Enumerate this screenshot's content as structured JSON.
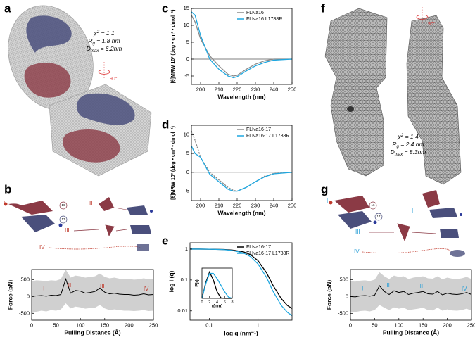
{
  "figure": {
    "panel_labels": [
      "a",
      "b",
      "c",
      "d",
      "e",
      "f",
      "g"
    ],
    "stats_a": [
      {
        "base": "χ",
        "mark": "2",
        "rest": " = 1.1"
      },
      {
        "base": "R",
        "mark": "g",
        "rest": " = 1.8 nm"
      },
      {
        "base": "D",
        "mark": "max",
        "rest": " = 6.2nm"
      }
    ],
    "stats_f": [
      {
        "base": "χ",
        "mark": "2",
        "rest": " = 1.4"
      },
      {
        "base": "R",
        "mark": "g",
        "rest": " = 2.4 nm"
      },
      {
        "base": "D",
        "mark": "max",
        "rest": " = 8.3nm"
      }
    ],
    "rotation": "90°",
    "states": [
      "I",
      "II",
      "III",
      "IV"
    ],
    "domains": [
      "16",
      "17"
    ]
  },
  "chart_data": [
    {
      "type": "line",
      "xlabel": "Wavelength (nm)",
      "ylabel": "[θ]MRW 10³ (deg • cm² • dmol⁻¹)",
      "x": [
        195,
        197,
        200,
        205,
        210,
        215,
        218,
        220,
        225,
        230,
        235,
        240,
        250
      ],
      "series": [
        {
          "name": "FLNa16",
          "color": "#8a8a8a",
          "values": [
            13,
            11,
            6,
            1,
            -2,
            -4.5,
            -5,
            -4.8,
            -3,
            -1.5,
            -0.5,
            0,
            0
          ]
        },
        {
          "name": "FLNa16 L1788R",
          "color": "#1ea7e0",
          "values": [
            14,
            13,
            7,
            0,
            -3,
            -5,
            -5.5,
            -5.2,
            -3.5,
            -2,
            -1,
            -0.3,
            0
          ]
        }
      ],
      "xlim": [
        195,
        250
      ],
      "xticks": [
        200,
        210,
        220,
        230,
        240,
        250
      ],
      "ylim": [
        -7.5,
        15
      ],
      "yticks": [
        -5,
        0,
        5,
        10,
        15
      ],
      "zero_line": true,
      "legend": "upper right"
    },
    {
      "type": "line",
      "xlabel": "Wavelength (nm)",
      "ylabel": "[θ]MRW 10³ (deg • cm² • dmol⁻¹)",
      "x": [
        195,
        197,
        200,
        205,
        210,
        215,
        218,
        220,
        225,
        230,
        235,
        240,
        250
      ],
      "series": [
        {
          "name": "FLNa16-17",
          "color": "#8a8a8a",
          "dash": true,
          "values": [
            11,
            8.5,
            4,
            0,
            -2,
            -4,
            -4.8,
            -5,
            -4,
            -2.5,
            -1,
            -0.3,
            0
          ]
        },
        {
          "name": "FLNa16-17 L1788R",
          "color": "#1ea7e0",
          "values": [
            7,
            5,
            4,
            -0.5,
            -2.5,
            -4.5,
            -5,
            -5,
            -4,
            -2.5,
            -1.2,
            -0.4,
            0
          ]
        }
      ],
      "xlim": [
        195,
        250
      ],
      "xticks": [
        200,
        210,
        220,
        230,
        240,
        250
      ],
      "ylim": [
        -7.5,
        12.5
      ],
      "yticks": [
        -5,
        0,
        5,
        10
      ],
      "zero_line": true,
      "legend": "upper right"
    },
    {
      "type": "line",
      "xlabel": "log q (nm⁻¹)",
      "ylabel": "log I (q)",
      "xlog": true,
      "ylog": true,
      "x": [
        0.04,
        0.06,
        0.1,
        0.2,
        0.3,
        0.5,
        0.7,
        1,
        1.5,
        2,
        3,
        4,
        5
      ],
      "series": [
        {
          "name": "FLNa16-17",
          "color": "#000000",
          "values": [
            1,
            1,
            0.99,
            0.97,
            0.93,
            0.82,
            0.66,
            0.42,
            0.17,
            0.07,
            0.025,
            0.015,
            0.012
          ]
        },
        {
          "name": "FLNa16-17 L1788R",
          "color": "#1ea7e0",
          "values": [
            1,
            1,
            0.99,
            0.96,
            0.9,
            0.75,
            0.57,
            0.33,
            0.12,
            0.045,
            0.015,
            0.009,
            0.007
          ]
        }
      ],
      "xlim": [
        0.04,
        5
      ],
      "xticks": [
        0.1,
        1
      ],
      "ylim": [
        0.005,
        1.6
      ],
      "yticks": [
        0.01,
        0.1,
        1
      ],
      "legend": "upper right"
    },
    {
      "type": "line",
      "xlabel": "r(nm)",
      "ylabel": "P(r)",
      "x": [
        0,
        1,
        2,
        3,
        4,
        5,
        6,
        7,
        8
      ],
      "series": [
        {
          "color": "#000000",
          "values": [
            0,
            0.6,
            1,
            0.7,
            0.25,
            0.02,
            0,
            0,
            0
          ]
        },
        {
          "color": "#1ea7e0",
          "values": [
            0,
            0.55,
            0.95,
            0.95,
            0.75,
            0.5,
            0.25,
            0.05,
            0
          ]
        }
      ],
      "xlim": [
        0,
        8
      ],
      "xticks": [
        0,
        2,
        4,
        6,
        8
      ],
      "ylim": [
        0,
        1.15
      ]
    },
    {
      "type": "line",
      "xlabel": "Pulling Distance (Å)",
      "ylabel": "Force (pN)",
      "x": [
        0,
        10,
        20,
        30,
        40,
        50,
        60,
        70,
        80,
        90,
        100,
        110,
        120,
        130,
        140,
        150,
        160,
        170,
        180,
        190,
        200,
        210,
        220,
        230,
        240,
        250
      ],
      "series": [
        {
          "color": "#000000",
          "values": [
            0,
            20,
            30,
            10,
            40,
            30,
            60,
            520,
            100,
            180,
            160,
            100,
            120,
            150,
            250,
            130,
            80,
            100,
            70,
            60,
            60,
            40,
            50,
            80,
            50,
            60
          ]
        }
      ],
      "band": {
        "color": "#d0d0d0",
        "lower": [
          -500,
          -450,
          -420,
          -440,
          -400,
          -420,
          -380,
          -200,
          -350,
          -300,
          -320,
          -360,
          -340,
          -330,
          -250,
          -350,
          -400,
          -380,
          -400,
          -420,
          -420,
          -430,
          -420,
          -400,
          -430,
          -420
        ],
        "upper": [
          450,
          480,
          470,
          460,
          480,
          470,
          520,
          800,
          560,
          620,
          600,
          560,
          580,
          600,
          680,
          580,
          540,
          560,
          530,
          520,
          520,
          500,
          510,
          540,
          510,
          520
        ]
      },
      "xlim": [
        0,
        250
      ],
      "xticks": [
        0,
        50,
        100,
        150,
        200,
        250
      ],
      "ylim": [
        -700,
        800
      ],
      "yticks": [
        -500,
        0,
        500
      ],
      "annotations": [
        "I",
        "II",
        "III",
        "IV"
      ],
      "annotation_color": "#c0392b"
    },
    {
      "type": "line",
      "xlabel": "Pulling Distance (Å)",
      "ylabel": "Force (pN)",
      "x": [
        0,
        10,
        20,
        30,
        40,
        50,
        60,
        70,
        80,
        90,
        100,
        110,
        120,
        130,
        140,
        150,
        160,
        170,
        180,
        190,
        200,
        210,
        220,
        230,
        240,
        250
      ],
      "series": [
        {
          "color": "#000000",
          "values": [
            0,
            -10,
            20,
            30,
            10,
            40,
            320,
            150,
            60,
            170,
            120,
            150,
            60,
            100,
            120,
            150,
            80,
            70,
            150,
            50,
            100,
            70,
            60,
            80,
            120,
            60
          ]
        }
      ],
      "band": {
        "color": "#d0d0d0",
        "lower": [
          -480,
          -460,
          -430,
          -420,
          -440,
          -400,
          -250,
          -330,
          -400,
          -320,
          -360,
          -330,
          -400,
          -380,
          -360,
          -330,
          -400,
          -410,
          -330,
          -420,
          -380,
          -410,
          -420,
          -400,
          -360,
          -420
        ],
        "upper": [
          450,
          440,
          470,
          480,
          460,
          500,
          720,
          600,
          520,
          620,
          580,
          600,
          520,
          560,
          580,
          600,
          540,
          530,
          600,
          510,
          560,
          530,
          520,
          540,
          580,
          520
        ]
      },
      "xlim": [
        0,
        250
      ],
      "xticks": [
        0,
        50,
        100,
        150,
        200,
        250
      ],
      "ylim": [
        -700,
        800
      ],
      "yticks": [
        -500,
        0,
        500
      ],
      "annotations": [
        "I",
        "II",
        "III",
        "IV"
      ],
      "annotation_color": "#2a9fd6"
    }
  ]
}
